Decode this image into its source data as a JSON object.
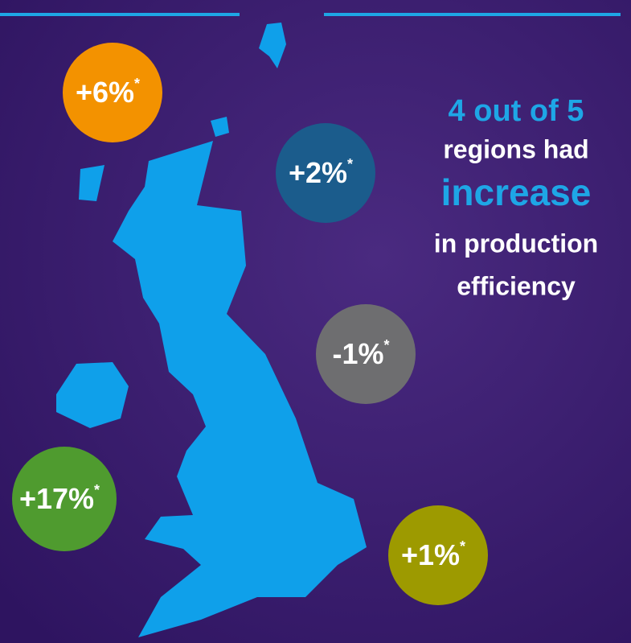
{
  "headline": {
    "lines": [
      {
        "text": "4 out of 5",
        "color": "#1ea6e6"
      },
      {
        "text": "regions had",
        "color": "#ffffff"
      },
      {
        "text": "increase",
        "color": "#1ea6e6"
      },
      {
        "text": "in production",
        "color": "#ffffff"
      },
      {
        "text": "efficiency",
        "color": "#ffffff"
      }
    ]
  },
  "regions": [
    {
      "label": "+6%",
      "note": "*",
      "color": "#f39200"
    },
    {
      "label": "+2%",
      "note": "*",
      "color": "#1b5c8c"
    },
    {
      "label": "-1%",
      "note": "*",
      "color": "#6e6e70"
    },
    {
      "label": "+17%",
      "note": "*",
      "color": "#4f9b2f"
    },
    {
      "label": "+1%",
      "note": "*",
      "color": "#9d9a00"
    }
  ]
}
